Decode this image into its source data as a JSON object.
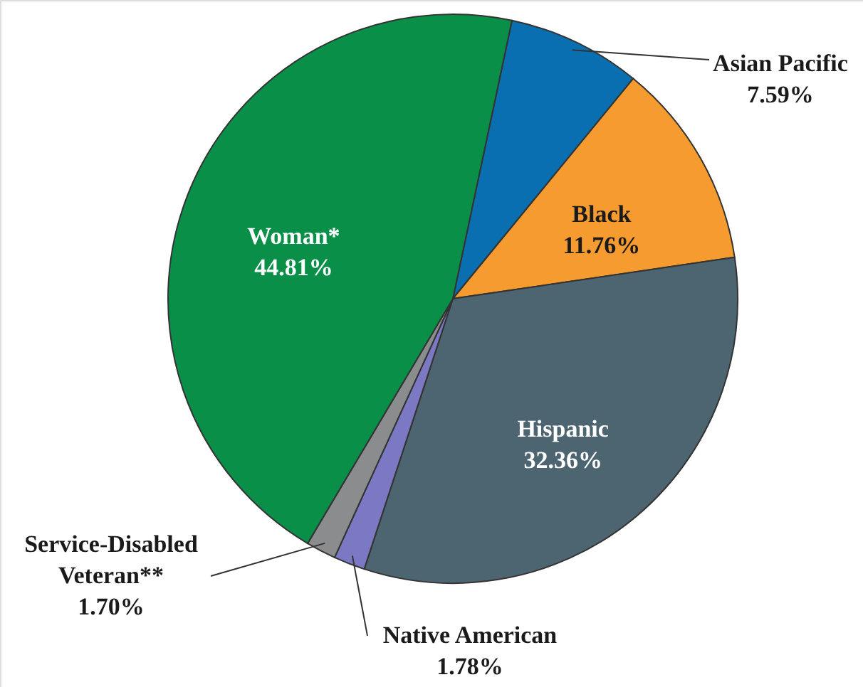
{
  "chart_data": {
    "type": "pie",
    "categories": [
      "Asian Pacific",
      "Black",
      "Hispanic",
      "Native American",
      "Service-Disabled Veteran**",
      "Woman*"
    ],
    "values": [
      7.59,
      11.76,
      32.36,
      1.78,
      1.7,
      44.81
    ],
    "colors": [
      "#0a6fb0",
      "#f59b2f",
      "#4d6570",
      "#7b78c4",
      "#8a8c8e",
      "#0a8f49"
    ],
    "value_labels": [
      "7.59%",
      "11.76%",
      "32.36%",
      "1.78%",
      "1.70%",
      "44.81%"
    ]
  }
}
